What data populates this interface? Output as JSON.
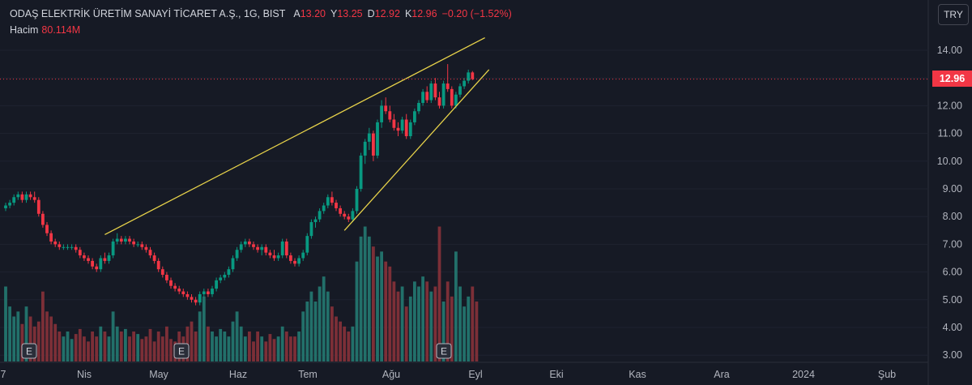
{
  "header": {
    "symbol": "ODAŞ ELEKTRİK ÜRETİM SANAYİ TİCARET A.Ş., 1G, BIST",
    "open_key": "A",
    "open": "13.20",
    "high_key": "Y",
    "high": "13.25",
    "low_key": "D",
    "low": "12.92",
    "close_key": "K",
    "close": "12.96",
    "change": "−0.20 (−1.52%)",
    "volume_label": "Hacim",
    "volume": "80.114M"
  },
  "currency_button": "TRY",
  "last_price_tag": "12.96",
  "colors": {
    "up": "#089981",
    "down": "#f23645",
    "up_vol": "#22706a",
    "down_vol": "#7c2f37",
    "trendline": "#e8d34a",
    "background": "#161a25",
    "text": "#d1d4dc",
    "grid": "#1f2330"
  },
  "chart_data": {
    "type": "candlestick",
    "y_axis": {
      "ticks": [
        3.0,
        4.0,
        5.0,
        6.0,
        7.0,
        8.0,
        9.0,
        10.0,
        11.0,
        12.0,
        13.0,
        14.0
      ],
      "tick_labels": [
        "3.00",
        "4.00",
        "5.00",
        "6.00",
        "7.00",
        "8.00",
        "9.00",
        "10.00",
        "11.00",
        "12.00",
        "13.00",
        "14.00"
      ],
      "ylim": [
        2.8,
        15.0
      ]
    },
    "x_axis": {
      "labels": [
        "7",
        "Nis",
        "May",
        "Haz",
        "Tem",
        "Ağu",
        "Eyl",
        "Eki",
        "Kas",
        "Ara",
        "2024",
        "Şub"
      ]
    },
    "last_price": 12.96,
    "earnings_markers": [
      "E",
      "E",
      "E"
    ],
    "candles": [
      [
        8.3,
        8.5,
        8.2,
        8.4
      ],
      [
        8.4,
        8.6,
        8.3,
        8.5
      ],
      [
        8.5,
        8.8,
        8.4,
        8.7
      ],
      [
        8.7,
        8.9,
        8.6,
        8.8
      ],
      [
        8.8,
        8.9,
        8.5,
        8.6
      ],
      [
        8.6,
        8.9,
        8.5,
        8.8
      ],
      [
        8.8,
        8.9,
        8.6,
        8.7
      ],
      [
        8.7,
        8.9,
        8.5,
        8.6
      ],
      [
        8.6,
        8.7,
        8.0,
        8.1
      ],
      [
        8.1,
        8.2,
        7.6,
        7.7
      ],
      [
        7.7,
        7.8,
        7.3,
        7.4
      ],
      [
        7.4,
        7.5,
        7.0,
        7.1
      ],
      [
        7.1,
        7.2,
        6.9,
        7.0
      ],
      [
        7.0,
        7.1,
        6.8,
        6.9
      ],
      [
        6.9,
        7.0,
        6.8,
        6.9
      ],
      [
        6.9,
        7.0,
        6.8,
        6.9
      ],
      [
        6.9,
        7.0,
        6.8,
        6.9
      ],
      [
        6.9,
        7.0,
        6.7,
        6.8
      ],
      [
        6.8,
        6.9,
        6.5,
        6.6
      ],
      [
        6.6,
        6.7,
        6.4,
        6.5
      ],
      [
        6.5,
        6.6,
        6.3,
        6.4
      ],
      [
        6.4,
        6.5,
        6.1,
        6.2
      ],
      [
        6.2,
        6.3,
        6.0,
        6.1
      ],
      [
        6.1,
        6.6,
        6.0,
        6.5
      ],
      [
        6.5,
        6.7,
        6.3,
        6.4
      ],
      [
        6.4,
        6.7,
        6.3,
        6.6
      ],
      [
        6.6,
        7.2,
        6.5,
        7.1
      ],
      [
        7.1,
        7.4,
        7.0,
        7.2
      ],
      [
        7.2,
        7.3,
        7.0,
        7.1
      ],
      [
        7.1,
        7.3,
        7.0,
        7.2
      ],
      [
        7.2,
        7.3,
        7.0,
        7.1
      ],
      [
        7.1,
        7.2,
        6.9,
        7.0
      ],
      [
        7.0,
        7.1,
        6.9,
        7.0
      ],
      [
        7.0,
        7.1,
        6.8,
        6.9
      ],
      [
        6.9,
        7.0,
        6.7,
        6.8
      ],
      [
        6.8,
        6.9,
        6.5,
        6.6
      ],
      [
        6.6,
        6.7,
        6.3,
        6.4
      ],
      [
        6.4,
        6.5,
        6.0,
        6.1
      ],
      [
        6.1,
        6.2,
        5.8,
        5.9
      ],
      [
        5.9,
        6.0,
        5.6,
        5.7
      ],
      [
        5.7,
        5.8,
        5.4,
        5.5
      ],
      [
        5.5,
        5.6,
        5.3,
        5.4
      ],
      [
        5.4,
        5.5,
        5.2,
        5.3
      ],
      [
        5.3,
        5.4,
        5.1,
        5.2
      ],
      [
        5.2,
        5.3,
        5.0,
        5.1
      ],
      [
        5.1,
        5.2,
        4.9,
        5.0
      ],
      [
        5.0,
        5.1,
        4.8,
        4.9
      ],
      [
        4.9,
        5.3,
        4.8,
        5.2
      ],
      [
        5.2,
        5.4,
        5.1,
        5.3
      ],
      [
        5.3,
        5.4,
        5.1,
        5.2
      ],
      [
        5.2,
        5.5,
        5.1,
        5.4
      ],
      [
        5.4,
        5.8,
        5.3,
        5.7
      ],
      [
        5.7,
        5.9,
        5.6,
        5.8
      ],
      [
        5.8,
        6.0,
        5.7,
        5.9
      ],
      [
        5.9,
        6.2,
        5.8,
        6.1
      ],
      [
        6.1,
        6.6,
        6.0,
        6.5
      ],
      [
        6.5,
        6.9,
        6.4,
        6.8
      ],
      [
        6.8,
        7.1,
        6.7,
        7.0
      ],
      [
        7.0,
        7.2,
        6.9,
        7.1
      ],
      [
        7.1,
        7.2,
        6.9,
        7.0
      ],
      [
        7.0,
        7.1,
        6.8,
        6.9
      ],
      [
        6.9,
        7.0,
        6.7,
        6.8
      ],
      [
        6.8,
        7.0,
        6.6,
        6.9
      ],
      [
        6.9,
        7.0,
        6.6,
        6.7
      ],
      [
        6.7,
        6.8,
        6.5,
        6.6
      ],
      [
        6.6,
        6.8,
        6.4,
        6.5
      ],
      [
        6.5,
        6.7,
        6.4,
        6.6
      ],
      [
        6.6,
        7.2,
        6.5,
        7.1
      ],
      [
        7.1,
        7.2,
        6.5,
        6.6
      ],
      [
        6.6,
        6.7,
        6.3,
        6.4
      ],
      [
        6.4,
        6.5,
        6.2,
        6.3
      ],
      [
        6.3,
        6.6,
        6.2,
        6.5
      ],
      [
        6.5,
        6.8,
        6.4,
        6.7
      ],
      [
        6.7,
        7.4,
        6.6,
        7.3
      ],
      [
        7.3,
        7.9,
        7.2,
        7.8
      ],
      [
        7.8,
        8.0,
        7.6,
        7.9
      ],
      [
        7.9,
        8.3,
        7.8,
        8.2
      ],
      [
        8.2,
        8.5,
        8.1,
        8.4
      ],
      [
        8.4,
        8.8,
        8.3,
        8.7
      ],
      [
        8.7,
        8.9,
        8.4,
        8.5
      ],
      [
        8.5,
        8.6,
        8.2,
        8.3
      ],
      [
        8.3,
        8.4,
        8.0,
        8.1
      ],
      [
        8.1,
        8.2,
        7.9,
        8.0
      ],
      [
        8.0,
        8.1,
        7.8,
        7.9
      ],
      [
        7.9,
        8.3,
        7.8,
        8.2
      ],
      [
        8.2,
        9.1,
        8.1,
        9.0
      ],
      [
        9.0,
        10.3,
        8.9,
        10.2
      ],
      [
        10.2,
        10.8,
        9.9,
        10.7
      ],
      [
        10.7,
        11.2,
        10.4,
        11.0
      ],
      [
        11.0,
        11.1,
        10.0,
        10.2
      ],
      [
        10.2,
        11.5,
        10.1,
        11.4
      ],
      [
        11.4,
        12.2,
        11.2,
        12.0
      ],
      [
        12.0,
        12.3,
        11.7,
        11.8
      ],
      [
        11.8,
        12.0,
        11.4,
        11.5
      ],
      [
        11.5,
        11.7,
        11.1,
        11.2
      ],
      [
        11.2,
        11.4,
        10.9,
        11.1
      ],
      [
        11.1,
        11.6,
        11.0,
        11.5
      ],
      [
        11.5,
        11.7,
        10.8,
        10.9
      ],
      [
        10.9,
        11.5,
        10.8,
        11.4
      ],
      [
        11.4,
        11.9,
        11.3,
        11.8
      ],
      [
        11.8,
        12.2,
        11.7,
        12.1
      ],
      [
        12.1,
        12.6,
        12.0,
        12.5
      ],
      [
        12.5,
        12.7,
        12.1,
        12.2
      ],
      [
        12.2,
        12.9,
        12.1,
        12.8
      ],
      [
        12.8,
        13.0,
        12.2,
        12.3
      ],
      [
        12.3,
        12.5,
        11.9,
        12.0
      ],
      [
        12.0,
        12.9,
        11.9,
        12.8
      ],
      [
        12.8,
        13.5,
        12.5,
        12.6
      ],
      [
        12.6,
        12.7,
        11.9,
        12.0
      ],
      [
        12.0,
        12.5,
        11.9,
        12.4
      ],
      [
        12.4,
        12.8,
        12.3,
        12.7
      ],
      [
        12.7,
        13.0,
        12.6,
        12.9
      ],
      [
        12.9,
        13.3,
        12.8,
        13.2
      ],
      [
        13.2,
        13.25,
        12.92,
        12.96
      ]
    ],
    "volumes": [
      0.3,
      0.22,
      0.18,
      0.2,
      0.15,
      0.22,
      0.18,
      0.14,
      0.16,
      0.28,
      0.2,
      0.18,
      0.15,
      0.12,
      0.1,
      0.12,
      0.09,
      0.11,
      0.13,
      0.1,
      0.08,
      0.12,
      0.1,
      0.14,
      0.12,
      0.1,
      0.2,
      0.14,
      0.12,
      0.13,
      0.1,
      0.12,
      0.11,
      0.09,
      0.1,
      0.13,
      0.08,
      0.12,
      0.1,
      0.14,
      0.09,
      0.08,
      0.12,
      0.1,
      0.14,
      0.16,
      0.12,
      0.2,
      0.26,
      0.14,
      0.12,
      0.1,
      0.13,
      0.12,
      0.1,
      0.16,
      0.2,
      0.14,
      0.1,
      0.12,
      0.08,
      0.12,
      0.1,
      0.08,
      0.11,
      0.09,
      0.1,
      0.14,
      0.12,
      0.1,
      0.1,
      0.12,
      0.2,
      0.24,
      0.28,
      0.24,
      0.3,
      0.34,
      0.28,
      0.22,
      0.18,
      0.16,
      0.14,
      0.12,
      0.14,
      0.4,
      0.5,
      0.54,
      0.5,
      0.46,
      0.42,
      0.44,
      0.4,
      0.38,
      0.32,
      0.28,
      0.3,
      0.22,
      0.26,
      0.32,
      0.3,
      0.34,
      0.32,
      0.28,
      0.3,
      0.54,
      0.24,
      0.32,
      0.26,
      0.44,
      0.3,
      0.22,
      0.26,
      0.3,
      0.24
    ],
    "trendlines": [
      {
        "from": [
          24,
          7.35
        ],
        "to": [
          116,
          14.45
        ]
      },
      {
        "from": [
          82,
          7.5
        ],
        "to": [
          117,
          13.3
        ]
      }
    ]
  }
}
